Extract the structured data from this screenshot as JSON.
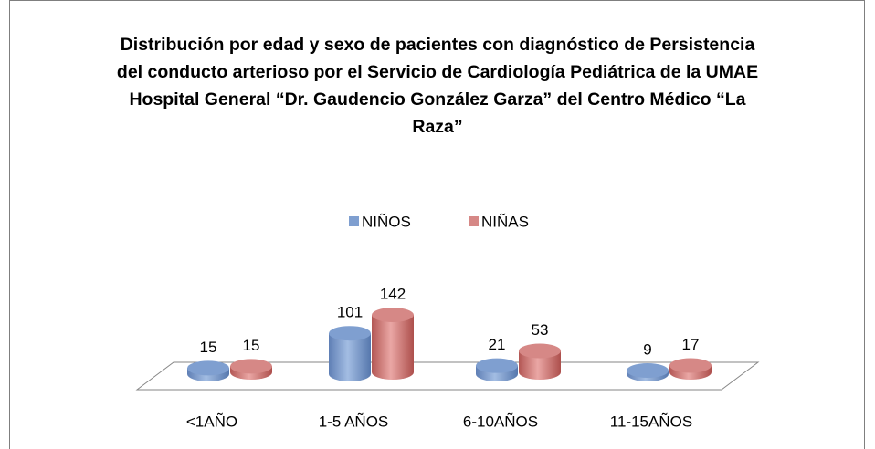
{
  "chart_data": {
    "type": "bar3d",
    "title": "Distribución por edad y sexo de pacientes con diagnóstico de Persistencia del conducto arterioso por el Servicio de Cardiología Pediátrica de la UMAE Hospital General “Dr. Gaudencio González Garza” del Centro Médico “La Raza”",
    "categories": [
      "<1AÑO",
      "1-5 AÑOS",
      "6-10AÑOS",
      "11-15AÑOS"
    ],
    "series": [
      {
        "name": "NIÑOS",
        "color": "#7f9fd0",
        "values": [
          15,
          101,
          21,
          9
        ]
      },
      {
        "name": "NIÑAS",
        "color": "#d68886",
        "values": [
          15,
          142,
          53,
          17
        ]
      }
    ],
    "legend": "top"
  }
}
